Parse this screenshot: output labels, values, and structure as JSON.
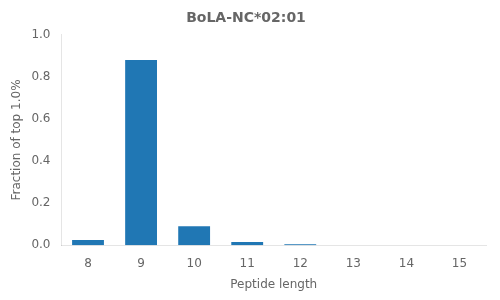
{
  "chart_data": {
    "type": "bar",
    "title": "BoLA-NC*02:01",
    "xlabel": "Peptide length",
    "ylabel": "Fraction of top 1.0%",
    "categories": [
      8,
      9,
      10,
      11,
      12,
      13,
      14,
      15
    ],
    "values": [
      0.025,
      0.88,
      0.09,
      0.015,
      0.005,
      0.0,
      0.0,
      0.0
    ],
    "color": "#2077b4",
    "xlim": [
      7.5,
      15.5
    ],
    "xticks": [
      8,
      9,
      10,
      11,
      12,
      13,
      14,
      15
    ],
    "ylim": [
      0.0,
      1.0
    ],
    "yticks": [
      {
        "value": 0.0,
        "label": "0.0"
      },
      0.2,
      0.4,
      0.6,
      0.8,
      {
        "value": 1.0,
        "label": "1.0"
      }
    ],
    "grid": false
  }
}
